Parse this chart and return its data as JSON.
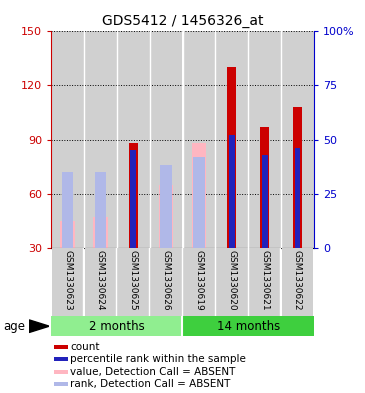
{
  "title": "GDS5412 / 1456326_at",
  "samples": [
    "GSM1330623",
    "GSM1330624",
    "GSM1330625",
    "GSM1330626",
    "GSM1330619",
    "GSM1330620",
    "GSM1330621",
    "GSM1330622"
  ],
  "red_bar_values": [
    null,
    null,
    88,
    null,
    null,
    130,
    97,
    108
  ],
  "blue_bar_pct": [
    null,
    null,
    45,
    null,
    null,
    52,
    43,
    46
  ],
  "pink_bar_values": [
    45,
    47,
    null,
    65,
    88,
    null,
    null,
    null
  ],
  "lightblue_bar_pct": [
    35,
    35,
    null,
    38,
    42,
    null,
    null,
    null
  ],
  "ylim_left": [
    30,
    150
  ],
  "ylim_right": [
    0,
    100
  ],
  "yticks_left": [
    30,
    60,
    90,
    120,
    150
  ],
  "yticks_right": [
    0,
    25,
    50,
    75,
    100
  ],
  "ytick_labels_right": [
    "0",
    "25",
    "50",
    "75",
    "100%"
  ],
  "left_axis_color": "#cc0000",
  "right_axis_color": "#0000cc",
  "red_color": "#cc0000",
  "blue_color": "#2222bb",
  "pink_color": "#ffb6c1",
  "lightblue_color": "#b0b8e8",
  "legend_items": [
    {
      "color": "#cc0000",
      "label": "count"
    },
    {
      "color": "#2222bb",
      "label": "percentile rank within the sample"
    },
    {
      "color": "#ffb6c1",
      "label": "value, Detection Call = ABSENT"
    },
    {
      "color": "#b0b8e8",
      "label": "rank, Detection Call = ABSENT"
    }
  ],
  "age_label": "age"
}
